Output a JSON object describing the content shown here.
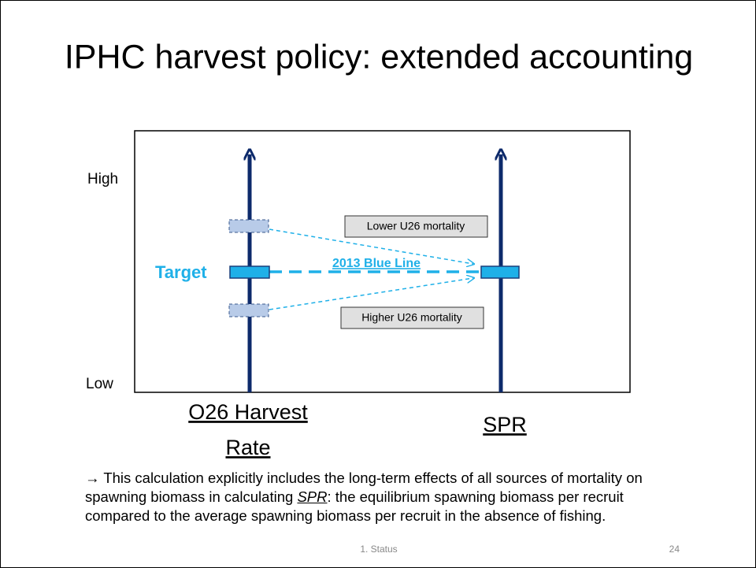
{
  "title": "IPHC harvest policy: extended accounting",
  "diagram": {
    "y_high": "High",
    "y_low": "Low",
    "target": "Target",
    "blue_line": "2013 Blue Line",
    "lower_label": "Lower U26 mortality",
    "higher_label": "Higher U26 mortality",
    "left_axis_lines": [
      "O26 Harvest",
      "Rate"
    ],
    "right_axis": "SPR"
  },
  "note": {
    "arrow": "→",
    "before": "This calculation explicitly includes the long-term effects of all sources of mortality on spawning biomass in calculating",
    "emph": "SPR",
    "after": ": the equilibrium spawning biomass per recruit compared to the average spawning biomass per recruit in the absence of fishing."
  },
  "footer": {
    "section": "1. Status",
    "page": "24"
  }
}
